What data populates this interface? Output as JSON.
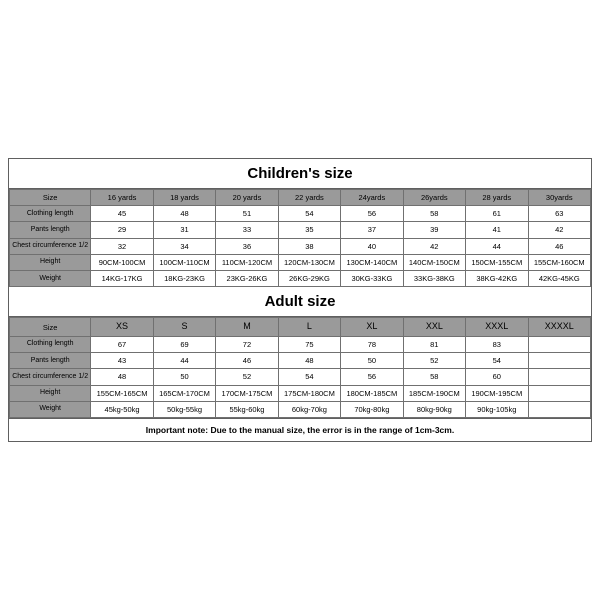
{
  "children": {
    "title": "Children's size",
    "header": [
      "Size",
      "16 yards",
      "18 yards",
      "20 yards",
      "22 yards",
      "24yards",
      "26yards",
      "28 yards",
      "30yards"
    ],
    "rows": [
      {
        "label": "Clothing length",
        "cells": [
          "45",
          "48",
          "51",
          "54",
          "56",
          "58",
          "61",
          "63"
        ]
      },
      {
        "label": "Pants length",
        "cells": [
          "29",
          "31",
          "33",
          "35",
          "37",
          "39",
          "41",
          "42"
        ]
      },
      {
        "label": "Chest circumference 1/2",
        "cells": [
          "32",
          "34",
          "36",
          "38",
          "40",
          "42",
          "44",
          "46"
        ]
      },
      {
        "label": "Height",
        "cells": [
          "90CM-100CM",
          "100CM-110CM",
          "110CM-120CM",
          "120CM-130CM",
          "130CM-140CM",
          "140CM-150CM",
          "150CM-155CM",
          "155CM-160CM"
        ]
      },
      {
        "label": "Weight",
        "cells": [
          "14KG-17KG",
          "18KG-23KG",
          "23KG-26KG",
          "26KG-29KG",
          "30KG-33KG",
          "33KG-38KG",
          "38KG-42KG",
          "42KG-45KG"
        ]
      }
    ]
  },
  "adult": {
    "title": "Adult size",
    "header": [
      "Size",
      "XS",
      "S",
      "M",
      "L",
      "XL",
      "XXL",
      "XXXL",
      "XXXXL"
    ],
    "rows": [
      {
        "label": "Clothing length",
        "cells": [
          "67",
          "69",
          "72",
          "75",
          "78",
          "81",
          "83",
          ""
        ]
      },
      {
        "label": "Pants length",
        "cells": [
          "43",
          "44",
          "46",
          "48",
          "50",
          "52",
          "54",
          ""
        ]
      },
      {
        "label": "Chest circumference 1/2",
        "cells": [
          "48",
          "50",
          "52",
          "54",
          "56",
          "58",
          "60",
          ""
        ]
      },
      {
        "label": "Height",
        "cells": [
          "155CM-165CM",
          "165CM-170CM",
          "170CM-175CM",
          "175CM-180CM",
          "180CM-185CM",
          "185CM-190CM",
          "190CM-195CM",
          ""
        ]
      },
      {
        "label": "Weight",
        "cells": [
          "45kg-50kg",
          "50kg-55kg",
          "55kg-60kg",
          "60kg-70kg",
          "70kg-80kg",
          "80kg-90kg",
          "90kg-105kg",
          ""
        ]
      }
    ]
  },
  "note": "Important note: Due to the manual size, the error is in the range of 1cm-3cm."
}
